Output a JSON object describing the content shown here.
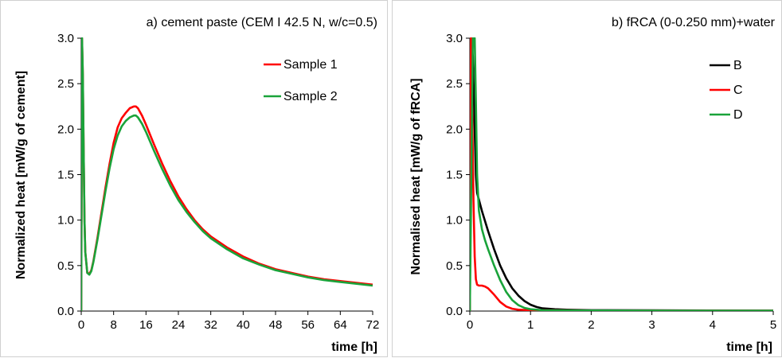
{
  "chart_data": [
    {
      "type": "line",
      "title": "a) cement paste (CEM I 42.5 N, w/c=0.5)",
      "xlabel": "time [h]",
      "ylabel": "Normalized heat [mW/g of cement]",
      "xlim": [
        0,
        72
      ],
      "ylim": [
        0,
        3.0
      ],
      "xticks": [
        0,
        8,
        16,
        24,
        32,
        40,
        48,
        56,
        64,
        72
      ],
      "yticks": [
        0.0,
        0.5,
        1.0,
        1.5,
        2.0,
        2.5,
        3.0
      ],
      "ytick_labels": [
        "0.0",
        "0.5",
        "1.0",
        "1.5",
        "2.0",
        "2.5",
        "3.0"
      ],
      "legend_position": "top-right",
      "grid": false,
      "series": [
        {
          "name": "Sample 1",
          "color": "#ff0000",
          "x": [
            0,
            0.2,
            0.4,
            0.6,
            0.8,
            1.0,
            1.5,
            2.0,
            2.5,
            3,
            4,
            5,
            6,
            7,
            8,
            9,
            10,
            11,
            12,
            13,
            13.5,
            14,
            15,
            16,
            18,
            20,
            22,
            24,
            26,
            28,
            30,
            32,
            36,
            40,
            44,
            48,
            52,
            56,
            60,
            64,
            68,
            72
          ],
          "y": [
            0,
            3.0,
            2.6,
            1.8,
            1.0,
            0.65,
            0.42,
            0.41,
            0.45,
            0.55,
            0.8,
            1.08,
            1.36,
            1.62,
            1.85,
            2.02,
            2.12,
            2.18,
            2.23,
            2.25,
            2.25,
            2.23,
            2.15,
            2.05,
            1.83,
            1.62,
            1.43,
            1.26,
            1.12,
            1.0,
            0.9,
            0.82,
            0.7,
            0.6,
            0.52,
            0.46,
            0.42,
            0.38,
            0.35,
            0.33,
            0.31,
            0.29
          ]
        },
        {
          "name": "Sample 2",
          "color": "#1aa33a",
          "x": [
            0,
            0.2,
            0.4,
            0.6,
            0.8,
            1.0,
            1.5,
            2.0,
            2.5,
            3,
            4,
            5,
            6,
            7,
            8,
            9,
            10,
            11,
            12,
            13,
            13.5,
            14,
            15,
            16,
            18,
            20,
            22,
            24,
            26,
            28,
            30,
            32,
            36,
            40,
            44,
            48,
            52,
            56,
            60,
            64,
            68,
            72
          ],
          "y": [
            0,
            3.0,
            2.6,
            1.8,
            1.0,
            0.65,
            0.42,
            0.4,
            0.44,
            0.54,
            0.78,
            1.05,
            1.32,
            1.57,
            1.78,
            1.93,
            2.03,
            2.09,
            2.13,
            2.15,
            2.15,
            2.13,
            2.06,
            1.97,
            1.76,
            1.56,
            1.38,
            1.22,
            1.09,
            0.98,
            0.88,
            0.8,
            0.68,
            0.58,
            0.51,
            0.45,
            0.41,
            0.37,
            0.34,
            0.32,
            0.3,
            0.28
          ]
        }
      ]
    },
    {
      "type": "line",
      "title": "b) fRCA (0-0.250 mm)+water",
      "xlabel": "time [h]",
      "ylabel": "Normalised heat [mW/g of fRCA]",
      "xlim": [
        0,
        5
      ],
      "ylim": [
        0,
        3.0
      ],
      "xticks": [
        0,
        1,
        2,
        3,
        4,
        5
      ],
      "yticks": [
        0.0,
        0.5,
        1.0,
        1.5,
        2.0,
        2.5,
        3.0
      ],
      "ytick_labels": [
        "0.0",
        "0.5",
        "1.0",
        "1.5",
        "2.0",
        "2.5",
        "3.0"
      ],
      "legend_position": "top-right",
      "grid": false,
      "series": [
        {
          "name": "B",
          "color": "#000000",
          "x": [
            0,
            0.02,
            0.05,
            0.08,
            0.1,
            0.12,
            0.2,
            0.3,
            0.4,
            0.5,
            0.6,
            0.7,
            0.8,
            0.9,
            1.0,
            1.1,
            1.2,
            1.4,
            1.6,
            2.0,
            3.0,
            4.0,
            5.0
          ],
          "y": [
            0,
            3.0,
            2.8,
            2.0,
            1.5,
            1.3,
            1.1,
            0.88,
            0.68,
            0.5,
            0.36,
            0.25,
            0.17,
            0.11,
            0.07,
            0.045,
            0.03,
            0.02,
            0.015,
            0.01,
            0.008,
            0.006,
            0.005
          ]
        },
        {
          "name": "C",
          "color": "#ff0000",
          "x": [
            0,
            0.02,
            0.04,
            0.06,
            0.08,
            0.1,
            0.12,
            0.15,
            0.2,
            0.25,
            0.3,
            0.4,
            0.5,
            0.6,
            0.7,
            0.8,
            1.0,
            1.5,
            2.0,
            3.0,
            4.0,
            5.0
          ],
          "y": [
            0,
            3.0,
            2.2,
            1.2,
            0.6,
            0.35,
            0.29,
            0.28,
            0.28,
            0.27,
            0.25,
            0.18,
            0.1,
            0.05,
            0.025,
            0.015,
            0.01,
            0.008,
            0.006,
            0.005,
            0.004,
            0.004
          ]
        },
        {
          "name": "D",
          "color": "#1aa33a",
          "x": [
            0,
            0.05,
            0.08,
            0.1,
            0.12,
            0.15,
            0.2,
            0.25,
            0.3,
            0.4,
            0.5,
            0.6,
            0.7,
            0.8,
            0.9,
            1.0,
            1.2,
            1.5,
            2.0,
            3.0,
            4.0,
            5.0
          ],
          "y": [
            0,
            3.0,
            3.0,
            2.3,
            1.5,
            1.1,
            0.9,
            0.78,
            0.68,
            0.5,
            0.34,
            0.21,
            0.12,
            0.065,
            0.035,
            0.02,
            0.01,
            0.008,
            0.006,
            0.005,
            0.004,
            0.004
          ]
        }
      ]
    }
  ]
}
